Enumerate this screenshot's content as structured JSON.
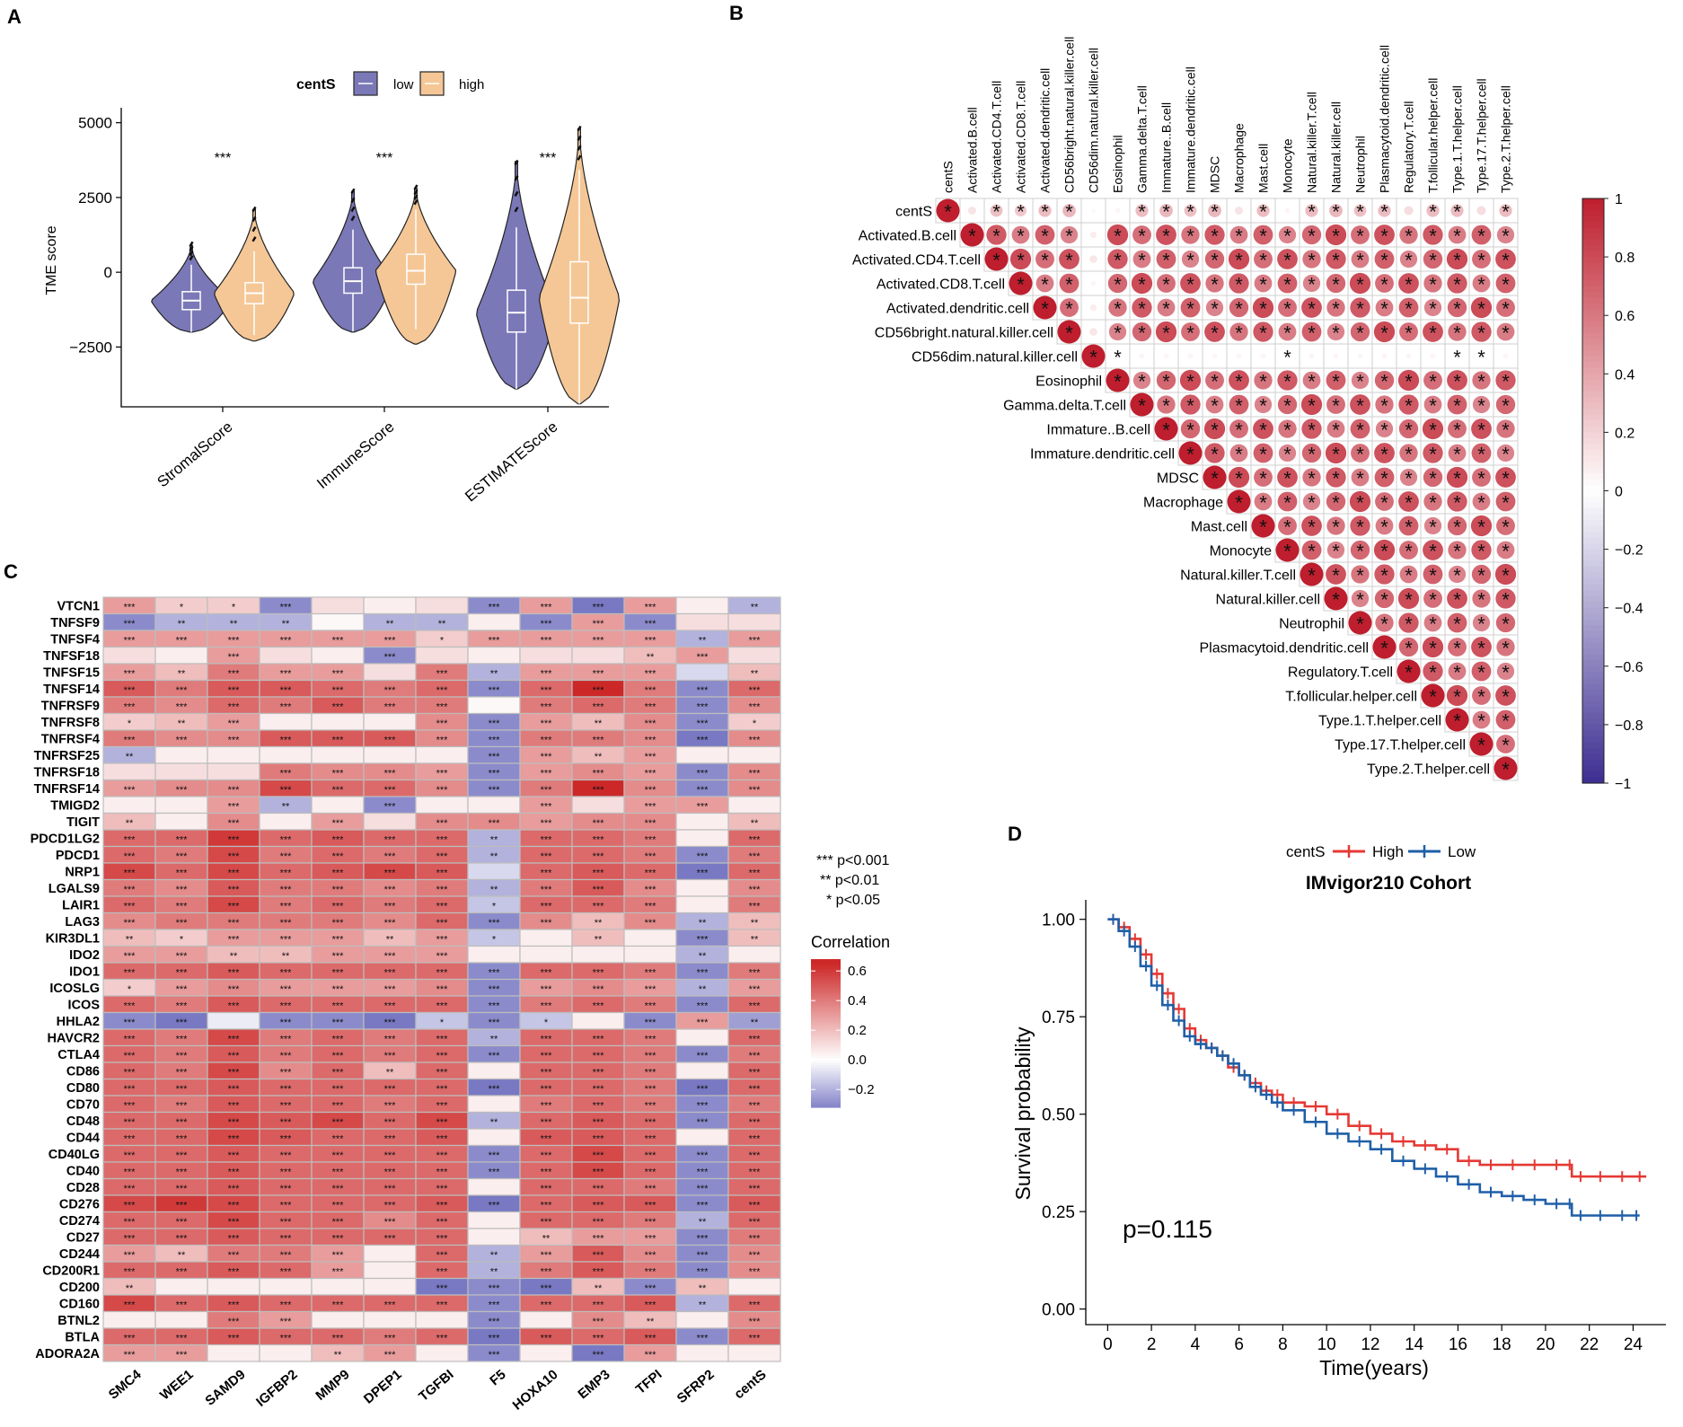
{
  "colors": {
    "low": "#7b78b8",
    "high": "#f5c796",
    "pos": "#c62828",
    "neg": "#4b3a9a",
    "surv_high": "#e53935",
    "surv_low": "#1f5fa8"
  },
  "panels": {
    "a": "A",
    "b": "B",
    "c": "C",
    "d": "D"
  },
  "chart_data": [
    {
      "type": "violin",
      "panel": "A",
      "ylabel": "TME score",
      "ylim": [
        -4500,
        5500
      ],
      "yticks": [
        -2500,
        0,
        2500,
        5000
      ],
      "ytick_labels": [
        "−2500",
        "0",
        "2500",
        "5000"
      ],
      "legend": {
        "title": "centS",
        "low": "low",
        "high": "high",
        "placement": "top"
      },
      "categories": [
        "StromalScore",
        "ImmuneScore",
        "ESTIMATEScore"
      ],
      "significance": [
        "***",
        "***",
        "***"
      ],
      "groups": [
        {
          "name": "low",
          "min": [
            -2000,
            -2000,
            -3900
          ],
          "q1": [
            -1250,
            -700,
            -2000
          ],
          "median": [
            -950,
            -300,
            -1350
          ],
          "q3": [
            -650,
            150,
            -600
          ],
          "max": [
            900,
            2700,
            3700
          ]
        },
        {
          "name": "high",
          "min": [
            -2300,
            -2400,
            -4400
          ],
          "q1": [
            -1050,
            -400,
            -1700
          ],
          "median": [
            -700,
            50,
            -850
          ],
          "q3": [
            -350,
            600,
            350
          ],
          "max": [
            2100,
            2800,
            4800
          ]
        }
      ]
    },
    {
      "type": "heatmap",
      "panel": "B",
      "subtype": "correlation-matrix-upper",
      "labels": [
        "centS",
        "Activated.B.cell",
        "Activated.CD4.T.cell",
        "Activated.CD8.T.cell",
        "Activated.dendritic.cell",
        "CD56bright.natural.killer.cell",
        "CD56dim.natural.killer.cell",
        "Eosinophil",
        "Gamma.delta.T.cell",
        "Immature..B.cell",
        "Immature.dendritic.cell",
        "MDSC",
        "Macrophage",
        "Mast.cell",
        "Monocyte",
        "Natural.killer.T.cell",
        "Natural.killer.cell",
        "Neutrophil",
        "Plasmacytoid.dendritic.cell",
        "Regulatory.T.cell",
        "T.follicular.helper.cell",
        "Type.1.T.helper.cell",
        "Type.17.T.helper.cell",
        "Type.2.T.helper.cell"
      ],
      "centS_row": [
        1.0,
        0.12,
        0.28,
        0.25,
        0.3,
        0.32,
        -0.03,
        0.05,
        0.3,
        0.32,
        0.28,
        0.32,
        0.12,
        0.3,
        0.05,
        0.3,
        0.32,
        0.28,
        0.3,
        0.15,
        0.3,
        0.3,
        0.15,
        0.3
      ],
      "colorbar": {
        "ticks": [
          1,
          0.8,
          0.6,
          0.4,
          0.2,
          0,
          -0.2,
          -0.4,
          -0.6,
          -0.8,
          -1
        ],
        "labels": [
          "1",
          "0.8",
          "0.6",
          "0.4",
          "0.2",
          "0",
          "−0.2",
          "−0.4",
          "−0.6",
          "−0.8",
          "−1"
        ]
      },
      "mark": "*"
    },
    {
      "type": "heatmap",
      "panel": "C",
      "rows": [
        "VTCN1",
        "TNFSF9",
        "TNFSF4",
        "TNFSF18",
        "TNFSF15",
        "TNFSF14",
        "TNFRSF9",
        "TNFRSF8",
        "TNFRSF4",
        "TNFRSF25",
        "TNFRSF18",
        "TNFRSF14",
        "TMIGD2",
        "TIGIT",
        "PDCD1LG2",
        "PDCD1",
        "NRP1",
        "LGALS9",
        "LAIR1",
        "LAG3",
        "KIR3DL1",
        "IDO2",
        "IDO1",
        "ICOSLG",
        "ICOS",
        "HHLA2",
        "HAVCR2",
        "CTLA4",
        "CD86",
        "CD80",
        "CD70",
        "CD48",
        "CD44",
        "CD40LG",
        "CD40",
        "CD28",
        "CD276",
        "CD274",
        "CD27",
        "CD244",
        "CD200R1",
        "CD200",
        "CD160",
        "BTNL2",
        "BTLA",
        "ADORA2A"
      ],
      "columns": [
        "SMC4",
        "WEE1",
        "SAMD9",
        "IGFBP2",
        "MMP9",
        "DPEP1",
        "TGFBI",
        "F5",
        "HOXA10",
        "EMP3",
        "TFPI",
        "SFRP2",
        "centS"
      ],
      "values": [
        [
          0.3,
          0.15,
          0.15,
          -0.3,
          0.1,
          0.05,
          0.1,
          -0.3,
          0.3,
          -0.35,
          0.3,
          0.05,
          -0.2
        ],
        [
          -0.3,
          -0.2,
          -0.2,
          -0.2,
          0.02,
          -0.2,
          -0.2,
          0.05,
          -0.3,
          0.3,
          -0.3,
          0.1,
          0.1
        ],
        [
          0.3,
          0.3,
          0.3,
          0.3,
          0.3,
          0.3,
          0.15,
          0.3,
          0.3,
          0.3,
          0.3,
          -0.2,
          0.3
        ],
        [
          0.1,
          0.05,
          0.3,
          0.1,
          0.05,
          -0.3,
          0.1,
          0.05,
          0.1,
          0.1,
          0.2,
          0.3,
          0.1
        ],
        [
          0.3,
          0.2,
          0.4,
          0.3,
          0.3,
          0.1,
          0.4,
          -0.2,
          0.3,
          0.3,
          0.3,
          -0.1,
          0.2
        ],
        [
          0.5,
          0.4,
          0.5,
          0.5,
          0.45,
          0.4,
          0.45,
          -0.3,
          0.45,
          0.65,
          0.4,
          -0.3,
          0.45
        ],
        [
          0.4,
          0.35,
          0.45,
          0.4,
          0.5,
          0.4,
          0.4,
          0.02,
          0.4,
          0.45,
          0.4,
          -0.3,
          0.35
        ],
        [
          0.15,
          0.2,
          0.3,
          0.05,
          0.05,
          0.05,
          0.35,
          -0.3,
          0.3,
          0.2,
          0.35,
          -0.3,
          0.15
        ],
        [
          0.4,
          0.35,
          0.35,
          0.5,
          0.5,
          0.5,
          0.35,
          -0.3,
          0.4,
          0.4,
          0.35,
          -0.4,
          0.35
        ],
        [
          -0.2,
          0.05,
          0.05,
          0.05,
          0.05,
          0.05,
          0.05,
          -0.3,
          0.3,
          0.2,
          0.3,
          0.05,
          0.05
        ],
        [
          0.1,
          0.1,
          0.1,
          0.4,
          0.35,
          0.35,
          0.3,
          -0.3,
          0.3,
          0.35,
          0.3,
          -0.3,
          0.35
        ],
        [
          0.3,
          0.35,
          0.35,
          0.55,
          0.45,
          0.45,
          0.35,
          -0.3,
          0.4,
          0.65,
          0.35,
          -0.3,
          0.35
        ],
        [
          0.05,
          0.05,
          0.3,
          -0.2,
          0.05,
          -0.3,
          0.05,
          0.05,
          0.3,
          0.1,
          0.3,
          0.3,
          0.05
        ],
        [
          0.2,
          0.05,
          0.35,
          0.05,
          0.3,
          0.1,
          0.35,
          0.35,
          0.3,
          0.35,
          0.35,
          0.05,
          0.2
        ],
        [
          0.45,
          0.45,
          0.6,
          0.45,
          0.5,
          0.45,
          0.45,
          -0.2,
          0.45,
          0.45,
          0.4,
          0.05,
          0.45
        ],
        [
          0.45,
          0.4,
          0.55,
          0.4,
          0.45,
          0.4,
          0.45,
          -0.2,
          0.45,
          0.45,
          0.4,
          -0.3,
          0.4
        ],
        [
          0.55,
          0.45,
          0.55,
          0.45,
          0.5,
          0.55,
          0.5,
          -0.1,
          0.45,
          0.5,
          0.45,
          -0.35,
          0.45
        ],
        [
          0.4,
          0.35,
          0.5,
          0.4,
          0.4,
          0.35,
          0.4,
          -0.2,
          0.4,
          0.5,
          0.35,
          0.05,
          0.35
        ],
        [
          0.45,
          0.4,
          0.55,
          0.4,
          0.45,
          0.4,
          0.45,
          -0.15,
          0.45,
          0.45,
          0.4,
          0.05,
          0.4
        ],
        [
          0.35,
          0.4,
          0.4,
          0.4,
          0.4,
          0.35,
          0.45,
          -0.3,
          0.35,
          0.2,
          0.35,
          -0.2,
          0.2
        ],
        [
          0.2,
          0.15,
          0.3,
          0.3,
          0.3,
          0.2,
          0.3,
          -0.15,
          0.05,
          0.2,
          0.05,
          -0.3,
          0.2
        ],
        [
          0.3,
          0.3,
          0.2,
          0.2,
          0.3,
          0.3,
          0.3,
          0.05,
          0.05,
          0.05,
          0.05,
          -0.2,
          0.05
        ],
        [
          0.45,
          0.45,
          0.5,
          0.45,
          0.45,
          0.45,
          0.45,
          -0.3,
          0.45,
          0.45,
          0.4,
          -0.3,
          0.4
        ],
        [
          0.15,
          0.3,
          0.35,
          0.3,
          0.3,
          0.3,
          0.35,
          -0.3,
          0.3,
          0.35,
          0.3,
          -0.2,
          0.3
        ],
        [
          0.45,
          0.4,
          0.5,
          0.45,
          0.45,
          0.45,
          0.45,
          -0.3,
          0.4,
          0.45,
          0.4,
          -0.3,
          0.45
        ],
        [
          -0.3,
          -0.35,
          -0.05,
          -0.3,
          -0.3,
          -0.35,
          -0.15,
          -0.3,
          -0.15,
          0.05,
          -0.3,
          0.3,
          -0.25
        ],
        [
          0.45,
          0.4,
          0.55,
          0.4,
          0.45,
          0.4,
          0.45,
          -0.2,
          0.45,
          0.45,
          0.4,
          0.05,
          0.45
        ],
        [
          0.45,
          0.4,
          0.5,
          0.4,
          0.45,
          0.4,
          0.45,
          -0.3,
          0.45,
          0.45,
          0.4,
          -0.3,
          0.4
        ],
        [
          0.45,
          0.4,
          0.55,
          0.35,
          0.45,
          0.2,
          0.45,
          0.05,
          0.45,
          0.45,
          0.4,
          0.05,
          0.45
        ],
        [
          0.45,
          0.45,
          0.5,
          0.45,
          0.45,
          0.45,
          0.45,
          -0.35,
          0.45,
          0.45,
          0.4,
          -0.35,
          0.45
        ],
        [
          0.45,
          0.4,
          0.5,
          0.45,
          0.45,
          0.4,
          0.45,
          0.05,
          0.4,
          0.45,
          0.4,
          -0.3,
          0.4
        ],
        [
          0.45,
          0.45,
          0.55,
          0.5,
          0.55,
          0.45,
          0.55,
          -0.2,
          0.45,
          0.5,
          0.45,
          -0.3,
          0.45
        ],
        [
          0.45,
          0.45,
          0.55,
          0.5,
          0.45,
          0.45,
          0.5,
          0.05,
          0.5,
          0.5,
          0.45,
          0.05,
          0.45
        ],
        [
          0.45,
          0.45,
          0.5,
          0.45,
          0.45,
          0.45,
          0.45,
          -0.3,
          0.45,
          0.55,
          0.45,
          -0.3,
          0.45
        ],
        [
          0.45,
          0.45,
          0.5,
          0.45,
          0.45,
          0.45,
          0.45,
          -0.3,
          0.45,
          0.55,
          0.45,
          -0.3,
          0.45
        ],
        [
          0.45,
          0.45,
          0.5,
          0.45,
          0.45,
          0.45,
          0.45,
          0.05,
          0.45,
          0.45,
          0.4,
          -0.3,
          0.45
        ],
        [
          0.55,
          0.6,
          0.55,
          0.45,
          0.45,
          0.45,
          0.5,
          -0.35,
          0.45,
          0.5,
          0.5,
          -0.3,
          0.5
        ],
        [
          0.45,
          0.45,
          0.55,
          0.45,
          0.45,
          0.35,
          0.45,
          0.05,
          0.45,
          0.45,
          0.4,
          -0.2,
          0.45
        ],
        [
          0.45,
          0.45,
          0.5,
          0.45,
          0.45,
          0.45,
          0.45,
          0.05,
          0.2,
          0.3,
          0.3,
          -0.3,
          0.4
        ],
        [
          0.3,
          0.2,
          0.4,
          0.4,
          0.3,
          0.05,
          0.45,
          -0.2,
          0.3,
          0.5,
          0.35,
          -0.3,
          0.35
        ],
        [
          0.45,
          0.45,
          0.5,
          0.45,
          0.3,
          0.05,
          0.45,
          -0.2,
          0.4,
          0.5,
          0.4,
          -0.3,
          0.35
        ],
        [
          0.2,
          0.05,
          0.05,
          0.05,
          0.05,
          0.05,
          -0.35,
          -0.3,
          -0.4,
          0.2,
          -0.3,
          0.2,
          0.05
        ],
        [
          0.55,
          0.45,
          0.5,
          0.45,
          0.45,
          0.45,
          0.45,
          -0.3,
          0.45,
          0.45,
          0.5,
          -0.2,
          0.45
        ],
        [
          0.05,
          0.05,
          0.4,
          0.3,
          0.05,
          0.05,
          0.05,
          -0.3,
          0.05,
          0.35,
          0.2,
          0.05,
          0.35
        ],
        [
          0.45,
          0.45,
          0.5,
          0.45,
          0.45,
          0.4,
          0.45,
          -0.35,
          0.5,
          0.45,
          0.5,
          -0.3,
          0.45
        ],
        [
          0.3,
          0.3,
          0.05,
          0.05,
          0.2,
          0.3,
          0.05,
          -0.3,
          0.05,
          -0.35,
          0.3,
          0.05,
          0.05
        ]
      ],
      "legend": {
        "sig": [
          "*** p<0.001",
          "** p<0.01",
          "* p<0.05"
        ],
        "title": "Correlation",
        "ticks": [
          0.6,
          0.4,
          0.2,
          0.0,
          -0.2
        ],
        "tick_labels": [
          "0.6",
          "0.4",
          "0.2",
          "0.0",
          "−0.2"
        ]
      }
    },
    {
      "type": "line",
      "panel": "D",
      "subtype": "kaplan-meier",
      "title": "IMvigor210 Cohort",
      "xlabel": "Time(years)",
      "ylabel": "Survival probability",
      "xlim": [
        -1,
        25.5
      ],
      "ylim": [
        -0.04,
        1.05
      ],
      "xticks": [
        0,
        2,
        4,
        6,
        8,
        10,
        12,
        14,
        16,
        18,
        20,
        22,
        24
      ],
      "yticks": [
        0.0,
        0.25,
        0.5,
        0.75,
        1.0
      ],
      "ytick_labels": [
        "0.00",
        "0.25",
        "0.50",
        "0.75",
        "1.00"
      ],
      "legend": {
        "title": "centS",
        "placement": "top",
        "entries": [
          "High",
          "Low"
        ]
      },
      "annotation": "p=0.115",
      "series": [
        {
          "name": "High",
          "x": [
            0,
            0.5,
            1,
            1.5,
            2,
            2.5,
            3,
            3.5,
            4,
            4.5,
            5,
            5.5,
            6,
            6.5,
            7,
            7.5,
            8,
            9,
            10,
            11,
            12,
            13,
            14,
            15,
            16,
            17,
            18,
            19,
            20,
            21,
            21.2,
            22,
            23,
            24,
            24.6
          ],
          "y": [
            1.0,
            0.98,
            0.95,
            0.91,
            0.86,
            0.81,
            0.77,
            0.72,
            0.69,
            0.67,
            0.65,
            0.62,
            0.6,
            0.58,
            0.56,
            0.55,
            0.53,
            0.52,
            0.5,
            0.47,
            0.45,
            0.43,
            0.42,
            0.41,
            0.38,
            0.37,
            0.37,
            0.37,
            0.37,
            0.37,
            0.34,
            0.34,
            0.34,
            0.34,
            0.34
          ]
        },
        {
          "name": "Low",
          "x": [
            0,
            0.5,
            1,
            1.5,
            2,
            2.5,
            3,
            3.5,
            4,
            4.5,
            5,
            5.5,
            6,
            6.5,
            7,
            7.5,
            8,
            9,
            10,
            11,
            12,
            13,
            14,
            15,
            16,
            17,
            18,
            19,
            20,
            21,
            21.2,
            22,
            23,
            24,
            24.3
          ],
          "y": [
            1.0,
            0.97,
            0.93,
            0.88,
            0.83,
            0.78,
            0.74,
            0.7,
            0.68,
            0.67,
            0.65,
            0.63,
            0.6,
            0.57,
            0.55,
            0.53,
            0.51,
            0.48,
            0.45,
            0.43,
            0.41,
            0.38,
            0.36,
            0.34,
            0.32,
            0.3,
            0.29,
            0.28,
            0.27,
            0.27,
            0.24,
            0.24,
            0.24,
            0.24,
            0.24
          ]
        }
      ]
    }
  ]
}
